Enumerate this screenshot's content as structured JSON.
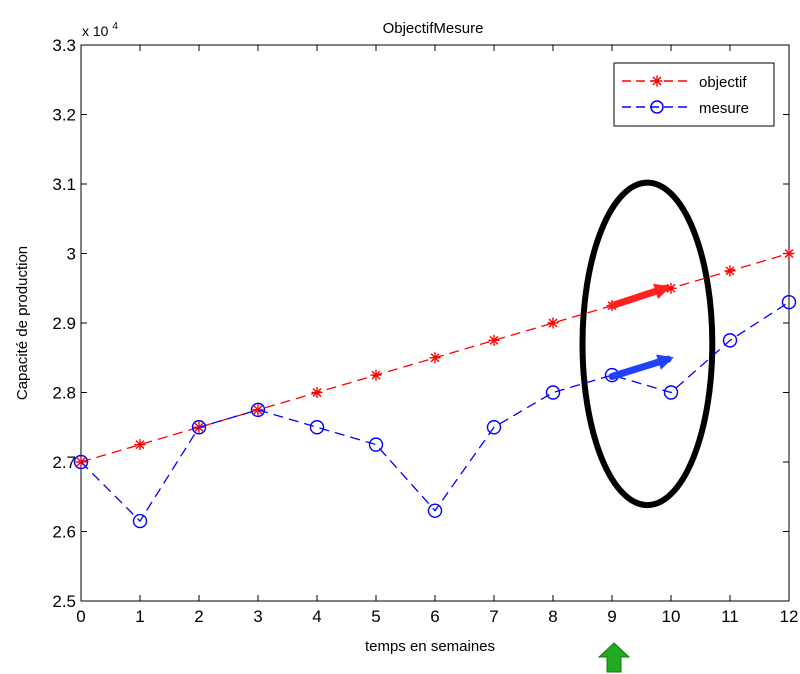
{
  "chart_data": {
    "type": "line",
    "title": "ObjectifMesure",
    "xlabel": "temps en semaines",
    "ylabel": "Capacité de production",
    "y_multiplier_base": "x 10",
    "y_multiplier_exp": "4",
    "xlim": [
      0,
      12
    ],
    "ylim": [
      2.5,
      3.3
    ],
    "x_ticks": [
      0,
      1,
      2,
      3,
      4,
      5,
      6,
      7,
      8,
      9,
      10,
      11,
      12
    ],
    "y_ticks": [
      2.5,
      2.6,
      2.7,
      2.8,
      2.9,
      3.0,
      3.1,
      3.2,
      3.3
    ],
    "y_tick_labels": [
      "2.5",
      "2.6",
      "2.7",
      "2.8",
      "2.9",
      "3",
      "3.1",
      "3.2",
      "3.3"
    ],
    "grid": false,
    "legend_position": "top-right",
    "series": [
      {
        "name": "objectif",
        "color": "#ff0000",
        "marker": "asterisk",
        "line_style": "dashed",
        "x": [
          0,
          1,
          2,
          3,
          4,
          5,
          6,
          7,
          8,
          9,
          10,
          11,
          12
        ],
        "values": [
          2.7,
          2.725,
          2.75,
          2.775,
          2.8,
          2.825,
          2.85,
          2.875,
          2.9,
          2.925,
          2.95,
          2.975,
          3.0
        ]
      },
      {
        "name": "mesure",
        "color": "#0000ff",
        "marker": "circle",
        "line_style": "dashed",
        "x": [
          0,
          1,
          2,
          3,
          4,
          5,
          6,
          7,
          8,
          9,
          10,
          11,
          12
        ],
        "values": [
          2.7,
          2.615,
          2.75,
          2.775,
          2.75,
          2.725,
          2.63,
          2.75,
          2.8,
          2.825,
          2.8,
          2.875,
          2.93
        ]
      }
    ],
    "annotations": [
      {
        "kind": "ellipse",
        "color": "#000000",
        "center_x": 9.6,
        "center_y": 2.87,
        "radius_x": 1.1,
        "radius_y": 0.232
      },
      {
        "kind": "arrow",
        "color": "#ff2020",
        "from": [
          9.0,
          2.925
        ],
        "to": [
          9.9,
          2.95
        ]
      },
      {
        "kind": "arrow",
        "color": "#2040ff",
        "from": [
          9.0,
          2.823
        ],
        "to": [
          9.95,
          2.848
        ]
      },
      {
        "kind": "up-arrow-marker",
        "color": "#22aa22",
        "at_x": 9
      }
    ]
  }
}
